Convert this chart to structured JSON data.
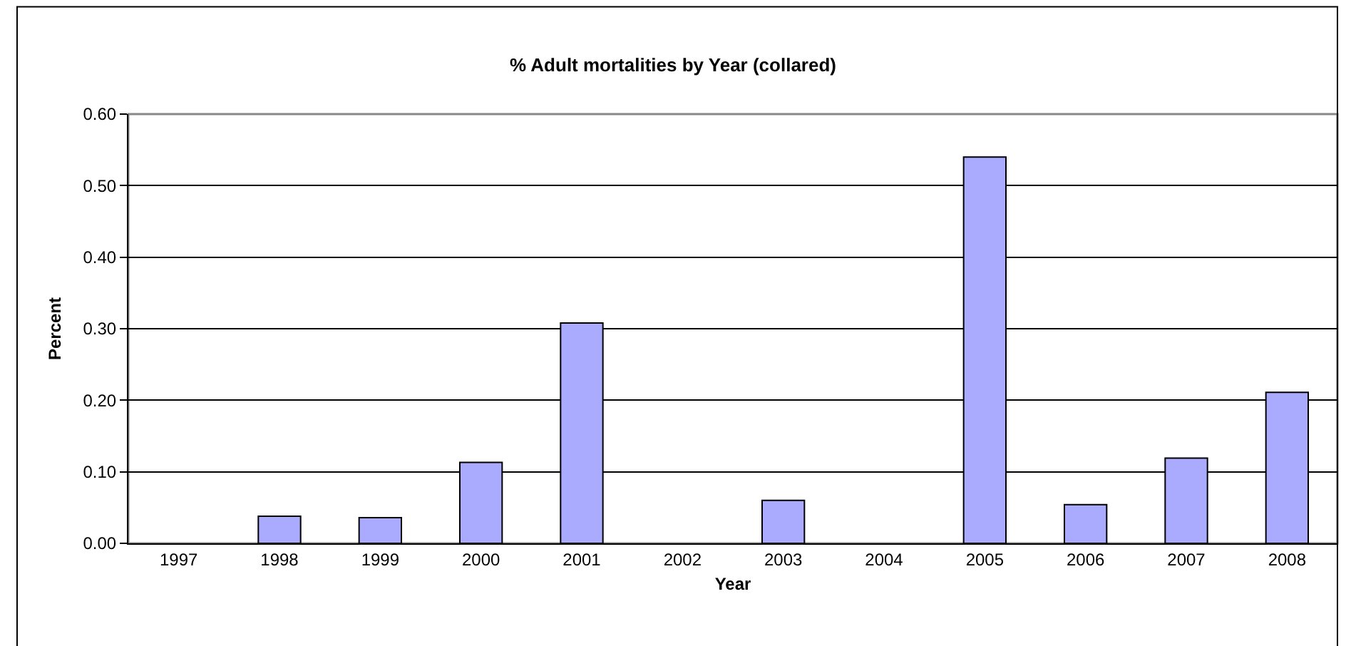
{
  "chart_data": {
    "type": "bar",
    "title": "% Adult mortalities by Year (collared)",
    "xlabel": "Year",
    "ylabel": "Percent",
    "categories": [
      "1997",
      "1998",
      "1999",
      "2000",
      "2001",
      "2002",
      "2003",
      "2004",
      "2005",
      "2006",
      "2007",
      "2008"
    ],
    "values": [
      0,
      0.038,
      0.036,
      0.113,
      0.308,
      0,
      0.06,
      0,
      0.54,
      0.054,
      0.119,
      0.211
    ],
    "color": "#aaaaff",
    "ylim": [
      0,
      0.6
    ],
    "yticks": [
      {
        "value": 0,
        "label": "0.00"
      },
      {
        "value": 0.1,
        "label": "0.10"
      },
      {
        "value": 0.2,
        "label": "0.20"
      },
      {
        "value": 0.3,
        "label": "0.30"
      },
      {
        "value": 0.4,
        "label": "0.40"
      },
      {
        "value": 0.5,
        "label": "0.50"
      },
      {
        "value": 0.6,
        "label": "0.60"
      }
    ],
    "grid": "y"
  }
}
